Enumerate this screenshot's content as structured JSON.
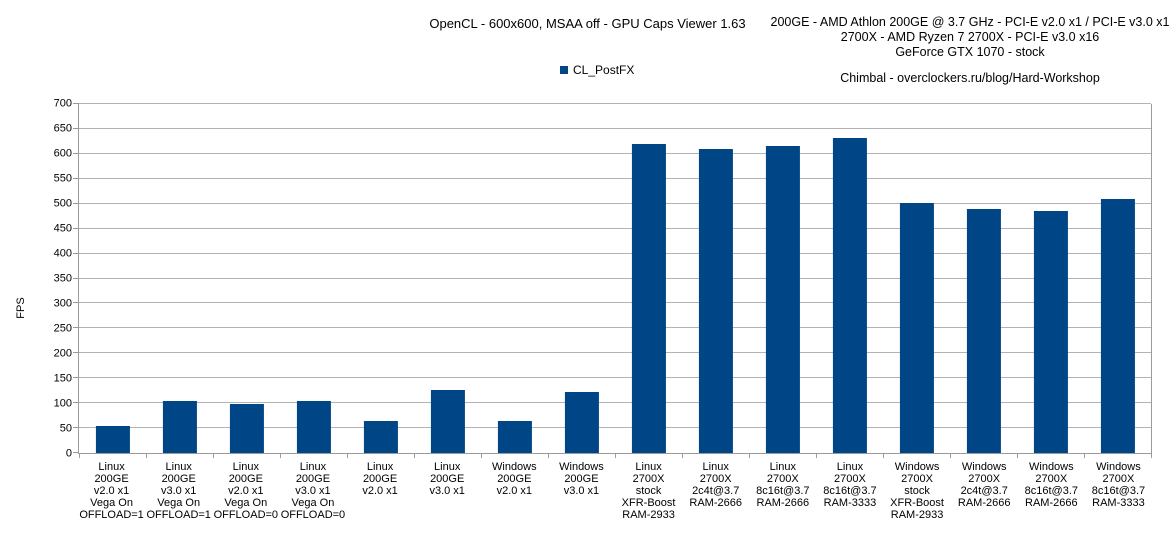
{
  "header": {
    "title": "OpenCL - 600x600, MSAA off - GPU Caps Viewer 1.63",
    "system_info": [
      "200GE - AMD Athlon 200GE @ 3.7 GHz - PCI-E v2.0 x1 / PCI-E v3.0 x1",
      "2700X - AMD Ryzen 7 2700X - PCI-E v3.0 x16",
      "GeForce GTX 1070 - stock"
    ],
    "credit": "Chimbal - overclockers.ru/blog/Hard-Workshop"
  },
  "legend": {
    "label": "CL_PostFX"
  },
  "colors": {
    "bar": "#004586",
    "gridline": "#b3b3b3",
    "axis": "#9a9a9a",
    "text": "#000000"
  },
  "chart_data": {
    "type": "bar",
    "title": "OpenCL - 600x600, MSAA off - GPU Caps Viewer 1.63",
    "xlabel": "",
    "ylabel": "FPS",
    "ylim": [
      0,
      700
    ],
    "ytick_step": 50,
    "grid": true,
    "legend_position": "top-center",
    "legend_entries": [
      "CL_PostFX"
    ],
    "bar_color": "#004586",
    "categories": [
      "Linux\n200GE\nv2.0 x1\nVega On\nOFFLOAD=1",
      "Linux\n200GE\nv3.0 x1\nVega On\nOFFLOAD=1",
      "Linux\n200GE\nv2.0 x1\nVega On\nOFFLOAD=0",
      "Linux\n200GE\nv3.0 x1\nVega On\nOFFLOAD=0",
      "Linux\n200GE\nv2.0 x1",
      "Linux\n200GE\nv3.0 x1",
      "Windows\n200GE\nv2.0 x1",
      "Windows\n200GE\nv3.0 x1",
      "Linux\n2700X\nstock\nXFR-Boost\nRAM-2933",
      "Linux\n2700X\n2c4t@3.7\nRAM-2666",
      "Linux\n2700X\n8c16t@3.7\nRAM-2666",
      "Linux\n2700X\n8c16t@3.7\nRAM-3333",
      "Windows\n2700X\nstock\nXFR-Boost\nRAM-2933",
      "Windows\n2700X\n2c4t@3.7\nRAM-2666",
      "Windows\n2700X\n8c16t@3.7\nRAM-2666",
      "Windows\n2700X\n8c16t@3.7\nRAM-3333"
    ],
    "values": [
      54,
      105,
      99,
      105,
      65,
      127,
      65,
      122,
      620,
      610,
      616,
      631,
      501,
      490,
      486,
      509
    ]
  }
}
